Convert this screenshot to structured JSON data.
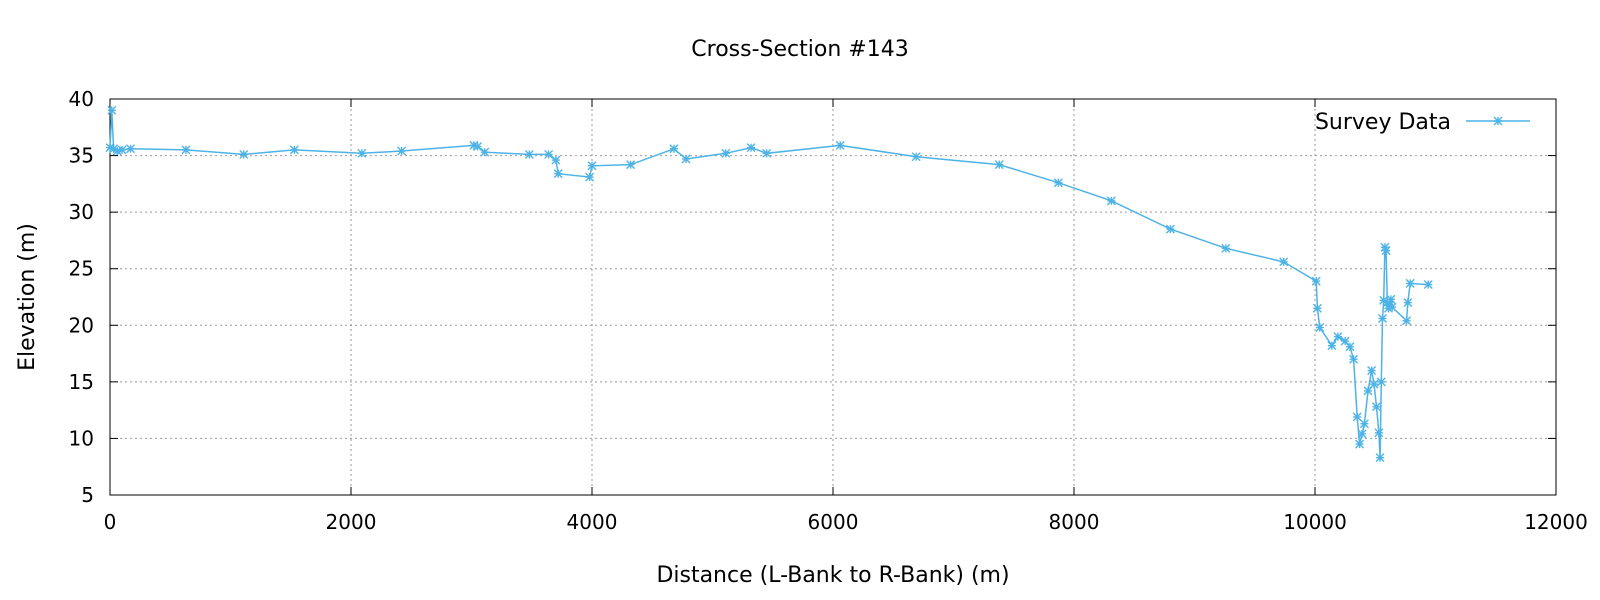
{
  "chart_data": {
    "type": "line",
    "title": "Cross-Section #143",
    "xlabel": "Distance (L-Bank to R-Bank) (m)",
    "ylabel": "Elevation (m)",
    "xlim": [
      0,
      12000
    ],
    "ylim": [
      5,
      40
    ],
    "xticks": [
      0,
      2000,
      4000,
      6000,
      8000,
      10000,
      12000
    ],
    "yticks": [
      5,
      10,
      15,
      20,
      25,
      30,
      35,
      40
    ],
    "grid": true,
    "legend_position": "top-right",
    "series": [
      {
        "name": "Survey Data",
        "color": "#4db3e6",
        "marker": "asterisk",
        "points": [
          [
            0,
            35.7
          ],
          [
            15,
            39.0
          ],
          [
            30,
            35.6
          ],
          [
            60,
            35.4
          ],
          [
            100,
            35.5
          ],
          [
            170,
            35.6
          ],
          [
            630,
            35.5
          ],
          [
            1110,
            35.1
          ],
          [
            1530,
            35.5
          ],
          [
            2090,
            35.2
          ],
          [
            2420,
            35.4
          ],
          [
            3020,
            35.9
          ],
          [
            3050,
            35.8
          ],
          [
            3110,
            35.3
          ],
          [
            3480,
            35.1
          ],
          [
            3640,
            35.1
          ],
          [
            3700,
            34.6
          ],
          [
            3720,
            33.4
          ],
          [
            3980,
            33.1
          ],
          [
            4000,
            34.1
          ],
          [
            4320,
            34.2
          ],
          [
            4680,
            35.6
          ],
          [
            4780,
            34.7
          ],
          [
            5110,
            35.2
          ],
          [
            5320,
            35.7
          ],
          [
            5450,
            35.2
          ],
          [
            6060,
            35.9
          ],
          [
            6690,
            34.9
          ],
          [
            7380,
            34.2
          ],
          [
            7870,
            32.6
          ],
          [
            8310,
            31.0
          ],
          [
            8800,
            28.5
          ],
          [
            9260,
            26.8
          ],
          [
            9740,
            25.6
          ],
          [
            10010,
            23.9
          ],
          [
            10020,
            21.5
          ],
          [
            10040,
            19.8
          ],
          [
            10140,
            18.2
          ],
          [
            10190,
            19.0
          ],
          [
            10250,
            18.6
          ],
          [
            10290,
            18.1
          ],
          [
            10320,
            17.0
          ],
          [
            10350,
            11.9
          ],
          [
            10370,
            9.5
          ],
          [
            10390,
            10.4
          ],
          [
            10410,
            11.3
          ],
          [
            10440,
            14.2
          ],
          [
            10470,
            16.0
          ],
          [
            10490,
            14.8
          ],
          [
            10510,
            12.8
          ],
          [
            10530,
            10.5
          ],
          [
            10540,
            8.3
          ],
          [
            10550,
            15.0
          ],
          [
            10560,
            20.6
          ],
          [
            10570,
            22.2
          ],
          [
            10580,
            26.9
          ],
          [
            10590,
            26.6
          ],
          [
            10600,
            22.0
          ],
          [
            10610,
            21.5
          ],
          [
            10620,
            21.8
          ],
          [
            10630,
            22.3
          ],
          [
            10640,
            21.6
          ],
          [
            10760,
            20.4
          ],
          [
            10770,
            22.0
          ],
          [
            10790,
            23.7
          ],
          [
            10940,
            23.6
          ]
        ]
      }
    ]
  }
}
